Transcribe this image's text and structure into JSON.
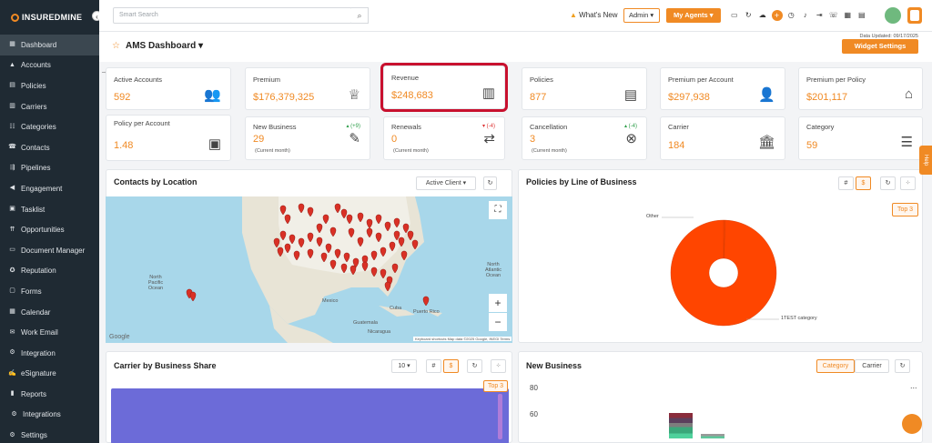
{
  "app": {
    "logo": "INSUREDMINE"
  },
  "sidebar": {
    "items": [
      {
        "label": "Dashboard",
        "icon": "grid-icon"
      },
      {
        "label": "Accounts",
        "icon": "accounts-icon"
      },
      {
        "label": "Policies",
        "icon": "policies-icon"
      },
      {
        "label": "Carriers",
        "icon": "carriers-icon"
      },
      {
        "label": "Categories",
        "icon": "categories-icon"
      },
      {
        "label": "Contacts",
        "icon": "contacts-icon"
      },
      {
        "label": "Pipelines",
        "icon": "pipelines-icon"
      },
      {
        "label": "Engagement",
        "icon": "megaphone-icon"
      },
      {
        "label": "Tasklist",
        "icon": "tasklist-icon"
      },
      {
        "label": "Opportunities",
        "icon": "opportunities-icon"
      },
      {
        "label": "Document Manager",
        "icon": "folder-icon"
      },
      {
        "label": "Reputation",
        "icon": "reputation-icon"
      },
      {
        "label": "Forms",
        "icon": "forms-icon"
      },
      {
        "label": "Calendar",
        "icon": "calendar-icon"
      },
      {
        "label": "Work Email",
        "icon": "email-icon"
      },
      {
        "label": "Integration",
        "icon": "integration-icon"
      },
      {
        "label": "eSignature",
        "icon": "signature-icon"
      },
      {
        "label": "Reports",
        "icon": "reports-icon"
      },
      {
        "label": "Integrations",
        "icon": "integrations-icon"
      },
      {
        "label": "Settings",
        "icon": "gear-icon"
      }
    ]
  },
  "topbar": {
    "search_placeholder": "Smart Search",
    "whats_new": "What's New",
    "admin": "Admin",
    "my_agents": "My Agents"
  },
  "header": {
    "title": "AMS Dashboard",
    "data_updated": "Data Updated: 09/17/2025",
    "widget_settings": "Widget Settings"
  },
  "kpis": {
    "active_accounts": {
      "label": "Active Accounts",
      "value": "592"
    },
    "premium": {
      "label": "Premium",
      "value": "$176,379,325"
    },
    "revenue": {
      "label": "Revenue",
      "value": "$248,683"
    },
    "policies": {
      "label": "Policies",
      "value": "877"
    },
    "premium_per_account": {
      "label": "Premium per Account",
      "value": "$297,938"
    },
    "premium_per_policy": {
      "label": "Premium per Policy",
      "value": "$201,117"
    },
    "policy_per_account": {
      "label": "Policy per Account",
      "value": "1.48"
    },
    "new_business": {
      "label": "New Business",
      "value": "29",
      "sub": "(Current month)",
      "delta": "+9"
    },
    "renewals": {
      "label": "Renewals",
      "value": "0",
      "sub": "(Current month)",
      "delta": "-4"
    },
    "cancellation": {
      "label": "Cancellation",
      "value": "3",
      "sub": "(Current month)",
      "delta": "-4"
    },
    "carrier": {
      "label": "Carrier",
      "value": "184"
    },
    "category": {
      "label": "Category",
      "value": "59"
    }
  },
  "contacts_by_location": {
    "title": "Contacts by Location",
    "filter": "Active Client",
    "map_labels": {
      "north_pacific": "North Pacific Ocean",
      "north_atlantic": "North Atlantic Ocean",
      "mexico": "Mexico",
      "cuba": "Cuba",
      "guatemala": "Guatemala",
      "nicaragua": "Nicaragua",
      "puerto_rico": "Puerto Rico",
      "attribution": "Keyboard shortcuts   Map data ©2025 Google, INEGI   Terms",
      "google": "Google"
    }
  },
  "policies_by_lob": {
    "title": "Policies by Line of Business",
    "top": "Top 3",
    "hash": "#",
    "dollar": "$"
  },
  "carrier_share": {
    "title": "Carrier by Business Share",
    "count": "10",
    "top": "Top 3",
    "hash": "#",
    "dollar": "$"
  },
  "new_business_panel": {
    "title": "New Business",
    "tab_category": "Category",
    "tab_carrier": "Carrier",
    "more": "..."
  },
  "chart_data": [
    {
      "type": "pie",
      "labels": [
        "Other",
        "1TEST category"
      ],
      "values": [
        0.5,
        99.5
      ],
      "colors": [
        "#ff4500",
        "#ff4500"
      ]
    },
    {
      "type": "bar",
      "categories": [],
      "values": [],
      "yticks": [
        "80",
        "60"
      ]
    }
  ],
  "help": "Help"
}
